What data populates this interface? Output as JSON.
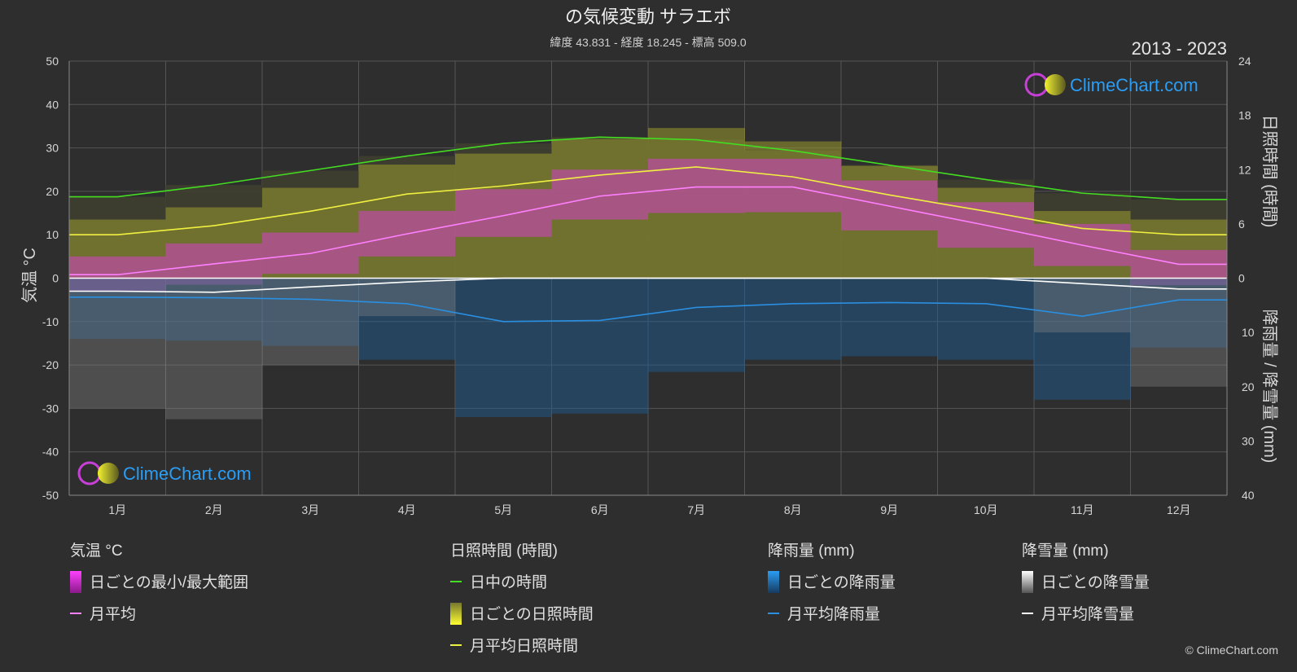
{
  "header": {
    "title": "の気候変動 サラエボ",
    "subtitle": "緯度 43.831 - 経度 18.245 - 標高 509.0",
    "period": "2013 - 2023"
  },
  "branding": {
    "logo_text": "ClimeChart.com",
    "copyright": "© ClimeChart.com"
  },
  "colors": {
    "background": "#2e2e2e",
    "daylight": "#44dd22",
    "sunshine_band": "#b5b52a",
    "sunshine_line": "#f0f040",
    "temp_band": "#d63fc8",
    "temp_line": "#ff80ff",
    "rain": "#1d7fd0",
    "rain_line": "#2a8fe0",
    "snow": "#bbbbbb",
    "snow_line": "#ffffff",
    "logo_text": "#2a9df4"
  },
  "chart_data": {
    "type": "area",
    "x_label": "",
    "categories": [
      "1月",
      "2月",
      "3月",
      "4月",
      "5月",
      "6月",
      "7月",
      "8月",
      "9月",
      "10月",
      "11月",
      "12月"
    ],
    "axes": {
      "left": {
        "label": "気温 °C",
        "min": -50,
        "max": 50,
        "ticks": [
          "50",
          "40",
          "30",
          "20",
          "10",
          "0",
          "-10",
          "-20",
          "-30",
          "-40",
          "-50"
        ]
      },
      "right_top": {
        "label": "日照時間 (時間)",
        "min": 0,
        "max": 24,
        "ticks": [
          "24",
          "18",
          "12",
          "6",
          "0"
        ]
      },
      "right_bottom": {
        "label": "降雨量 / 降雪量 (mm)",
        "min": 0,
        "max": 40,
        "ticks": [
          "0",
          "10",
          "20",
          "30",
          "40"
        ]
      }
    },
    "grid": true,
    "series": [
      {
        "name": "日中の時間",
        "unit": "hours",
        "values": [
          9.0,
          10.3,
          11.9,
          13.5,
          14.9,
          15.6,
          15.3,
          14.1,
          12.5,
          10.9,
          9.4,
          8.7
        ]
      },
      {
        "name": "月平均日照時間",
        "unit": "hours",
        "values": [
          4.8,
          5.8,
          7.4,
          9.3,
          10.2,
          11.4,
          12.3,
          11.2,
          9.2,
          7.4,
          5.5,
          4.8
        ]
      },
      {
        "name": "月平均",
        "unit": "°C",
        "values": [
          0.8,
          3.3,
          5.7,
          10.2,
          14.4,
          18.9,
          21.0,
          21.0,
          16.6,
          12.2,
          7.6,
          3.2
        ]
      },
      {
        "name": "日ごとの最小/最大範囲",
        "unit": "°C",
        "min": [
          -3.2,
          -1.5,
          1.0,
          5.0,
          9.5,
          13.5,
          15.0,
          15.2,
          11.0,
          7.0,
          2.8,
          -1.6
        ],
        "max": [
          5.0,
          8.0,
          10.5,
          15.5,
          20.5,
          25.0,
          27.5,
          27.5,
          22.5,
          17.5,
          12.5,
          6.5
        ]
      },
      {
        "name": "月平均降雨量",
        "unit": "mm",
        "values": [
          3.5,
          3.6,
          3.9,
          4.7,
          8.0,
          7.8,
          5.4,
          4.7,
          4.5,
          4.7,
          7.0,
          4.0
        ]
      },
      {
        "name": "月平均降雪量",
        "unit": "mm",
        "values": [
          2.4,
          2.6,
          1.6,
          0.7,
          0.0,
          0.0,
          0.0,
          0.0,
          0.0,
          0.0,
          1.0,
          2.0
        ]
      }
    ]
  },
  "legend": {
    "temperature": {
      "heading": "気温 °C",
      "items": [
        "日ごとの最小/最大範囲",
        "月平均"
      ]
    },
    "sunshine": {
      "heading": "日照時間 (時間)",
      "items": [
        "日中の時間",
        "日ごとの日照時間",
        "月平均日照時間"
      ]
    },
    "rain": {
      "heading": "降雨量 (mm)",
      "items": [
        "日ごとの降雨量",
        "月平均降雨量"
      ]
    },
    "snow": {
      "heading": "降雪量 (mm)",
      "items": [
        "日ごとの降雪量",
        "月平均降雪量"
      ]
    }
  }
}
